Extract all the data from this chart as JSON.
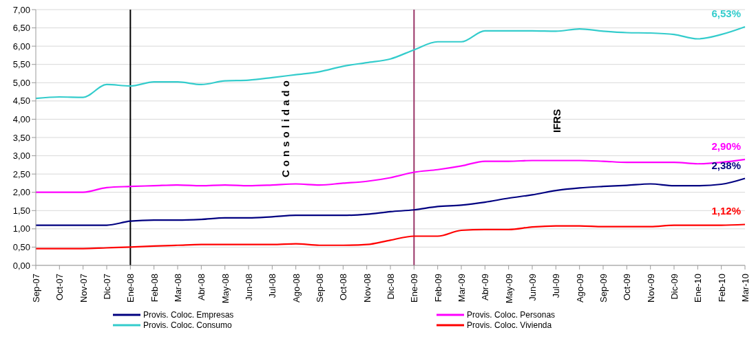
{
  "chart_data": {
    "type": "line",
    "categories": [
      "Sep-07",
      "Oct-07",
      "Nov-07",
      "Dic-07",
      "Ene-08",
      "Feb-08",
      "Mar-08",
      "Abr-08",
      "May-08",
      "Jun-08",
      "Jul-08",
      "Ago-08",
      "Sep-08",
      "Oct-08",
      "Nov-08",
      "Dic-08",
      "Ene-09",
      "Feb-09",
      "Mar-09",
      "Abr-09",
      "May-09",
      "Jun-09",
      "Jul-09",
      "Ago-09",
      "Sep-09",
      "Oct-09",
      "Nov-09",
      "Dic-09",
      "Ene-10",
      "Feb-10",
      "Mar-10"
    ],
    "series": [
      {
        "name": "Provis. Coloc. Empresas",
        "color": "#000080",
        "values": [
          1.1,
          1.1,
          1.1,
          1.1,
          1.21,
          1.24,
          1.24,
          1.26,
          1.3,
          1.3,
          1.33,
          1.37,
          1.37,
          1.37,
          1.4,
          1.47,
          1.52,
          1.61,
          1.65,
          1.73,
          1.84,
          1.93,
          2.05,
          2.12,
          2.16,
          2.19,
          2.23,
          2.18,
          2.18,
          2.22,
          2.38
        ],
        "value_labels": [
          null,
          null,
          null,
          null,
          null,
          null,
          null,
          null,
          null,
          null,
          null,
          null,
          null,
          null,
          null,
          null,
          null,
          null,
          null,
          null,
          null,
          null,
          null,
          null,
          null,
          null,
          null,
          null,
          null,
          null,
          "2,38%"
        ]
      },
      {
        "name": "Provis. Coloc. Personas",
        "color": "#ff00ff",
        "values": [
          2.0,
          2.0,
          2.0,
          2.13,
          2.16,
          2.18,
          2.2,
          2.18,
          2.2,
          2.18,
          2.2,
          2.23,
          2.2,
          2.25,
          2.3,
          2.4,
          2.55,
          2.62,
          2.72,
          2.85,
          2.85,
          2.87,
          2.87,
          2.87,
          2.85,
          2.82,
          2.82,
          2.82,
          2.78,
          2.82,
          2.9
        ],
        "value_labels": [
          null,
          null,
          null,
          null,
          null,
          null,
          null,
          null,
          null,
          null,
          null,
          null,
          null,
          null,
          null,
          null,
          null,
          null,
          null,
          null,
          null,
          null,
          null,
          null,
          null,
          null,
          null,
          null,
          null,
          null,
          "2,90%"
        ]
      },
      {
        "name": "Provis. Coloc. Consumo",
        "color": "#33cccc",
        "values": [
          4.57,
          4.61,
          4.6,
          4.95,
          4.91,
          5.02,
          5.02,
          4.95,
          5.05,
          5.07,
          5.14,
          5.22,
          5.3,
          5.45,
          5.55,
          5.65,
          5.9,
          6.12,
          6.12,
          6.42,
          6.42,
          6.42,
          6.41,
          6.47,
          6.41,
          6.37,
          6.36,
          6.32,
          6.2,
          6.32,
          6.53
        ],
        "value_labels": [
          null,
          null,
          null,
          null,
          null,
          null,
          null,
          null,
          null,
          null,
          null,
          null,
          null,
          null,
          null,
          null,
          null,
          null,
          null,
          null,
          null,
          null,
          null,
          null,
          null,
          null,
          null,
          null,
          null,
          null,
          "6,53%"
        ]
      },
      {
        "name": "Provis. Coloc. Vivienda",
        "color": "#ff0000",
        "values": [
          0.46,
          0.46,
          0.46,
          0.48,
          0.5,
          0.53,
          0.55,
          0.57,
          0.57,
          0.57,
          0.57,
          0.59,
          0.55,
          0.55,
          0.57,
          0.69,
          0.8,
          0.8,
          0.96,
          0.98,
          0.98,
          1.05,
          1.08,
          1.08,
          1.06,
          1.06,
          1.06,
          1.1,
          1.1,
          1.1,
          1.12
        ],
        "value_labels": [
          null,
          null,
          null,
          null,
          null,
          null,
          null,
          null,
          null,
          null,
          null,
          null,
          null,
          null,
          null,
          null,
          null,
          null,
          null,
          null,
          null,
          null,
          null,
          null,
          null,
          null,
          null,
          null,
          null,
          null,
          "1,12%"
        ]
      }
    ],
    "ylim": [
      0,
      7
    ],
    "yticks": [
      {
        "value": 0,
        "label": "0,00"
      },
      {
        "value": 0.5,
        "label": "0,50"
      },
      {
        "value": 1,
        "label": "1,00"
      },
      {
        "value": 1.5,
        "label": "1,50"
      },
      {
        "value": 2,
        "label": "2,00"
      },
      {
        "value": 2.5,
        "label": "2,50"
      },
      {
        "value": 3,
        "label": "3,00"
      },
      {
        "value": 3.5,
        "label": "3,50"
      },
      {
        "value": 4,
        "label": "4,00"
      },
      {
        "value": 4.5,
        "label": "4,50"
      },
      {
        "value": 5,
        "label": "5,00"
      },
      {
        "value": 5.5,
        "label": "5,50"
      },
      {
        "value": 6,
        "label": "6,00"
      },
      {
        "value": 6.5,
        "label": "6,50"
      },
      {
        "value": 7,
        "label": "7,00"
      }
    ],
    "grid": "y",
    "legend": "bottom",
    "marker": "none",
    "line_style": "solid",
    "ref_lines": [
      {
        "axis": "x",
        "value": "Ene-08",
        "color": "#000000"
      },
      {
        "axis": "x",
        "value": "Ene-09",
        "color": "#993366"
      }
    ],
    "annotations": [
      "Consolidado",
      "IFRS"
    ]
  }
}
